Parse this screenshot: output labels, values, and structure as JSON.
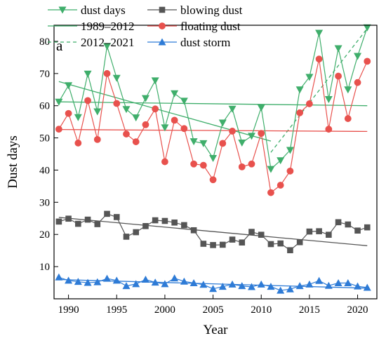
{
  "chart_data": {
    "type": "line",
    "panel_label": "a",
    "xlabel": "Year",
    "ylabel": "Dust days",
    "xlim": [
      1988.5,
      2022.0
    ],
    "ylim": [
      0,
      85
    ],
    "x_ticks": [
      1990,
      1995,
      2000,
      2005,
      2010,
      2015,
      2020
    ],
    "y_ticks": [
      10,
      20,
      30,
      40,
      50,
      60,
      70,
      80
    ],
    "grid": false,
    "legend_position": "top",
    "x": [
      1989,
      1990,
      1991,
      1992,
      1993,
      1994,
      1995,
      1996,
      1997,
      1998,
      1999,
      2000,
      2001,
      2002,
      2003,
      2004,
      2005,
      2006,
      2007,
      2008,
      2009,
      2010,
      2011,
      2012,
      2013,
      2014,
      2015,
      2016,
      2017,
      2018,
      2019,
      2020,
      2021
    ],
    "series": [
      {
        "name": "dust days",
        "color": "#3fae6b",
        "marker": "triangle-down",
        "values": [
          61.2,
          66.3,
          56.4,
          69.9,
          58.2,
          78.5,
          68.6,
          58.9,
          56.3,
          62.3,
          67.8,
          53.2,
          63.8,
          61.5,
          48.9,
          48.3,
          43.7,
          54.7,
          59.0,
          48.5,
          50.6,
          59.4,
          40.3,
          43.0,
          46.2,
          65.0,
          68.9,
          82.6,
          62.0,
          77.8,
          65.0,
          75.4,
          84.3
        ]
      },
      {
        "name": "floating dust",
        "color": "#e8514d",
        "marker": "circle",
        "values": [
          52.7,
          57.6,
          48.4,
          61.6,
          49.5,
          70.0,
          60.7,
          51.2,
          48.8,
          54.1,
          59.0,
          42.6,
          55.5,
          52.9,
          41.9,
          41.5,
          37.0,
          48.3,
          52.1,
          41.0,
          41.9,
          51.4,
          33.0,
          35.3,
          39.7,
          57.8,
          60.6,
          74.5,
          52.7,
          69.2,
          56.0,
          67.2,
          73.8
        ]
      },
      {
        "name": "blowing dust",
        "color": "#555555",
        "marker": "square",
        "values": [
          24.0,
          24.9,
          23.3,
          24.6,
          23.2,
          26.4,
          25.4,
          19.3,
          20.7,
          22.6,
          24.4,
          24.2,
          23.7,
          22.9,
          21.3,
          17.1,
          16.7,
          16.8,
          18.4,
          17.5,
          20.8,
          19.9,
          17.0,
          17.2,
          15.1,
          17.6,
          20.9,
          21.0,
          19.9,
          23.8,
          23.1,
          21.2,
          22.2
        ]
      },
      {
        "name": "dust storm",
        "color": "#2e7bd6",
        "marker": "triangle-up",
        "values": [
          6.7,
          5.7,
          5.3,
          5.0,
          5.2,
          6.3,
          5.7,
          4.0,
          4.6,
          6.0,
          5.1,
          4.6,
          6.4,
          5.4,
          4.9,
          4.4,
          3.1,
          3.8,
          4.5,
          4.0,
          3.7,
          4.5,
          3.8,
          2.6,
          3.0,
          4.0,
          4.5,
          5.6,
          4.1,
          4.9,
          4.9,
          3.9,
          3.5
        ]
      }
    ],
    "trend_lines": [
      {
        "name": "1989–2012",
        "style": "solid",
        "color": "#3fae6b",
        "x": [
          1989,
          2011
        ],
        "y": [
          67.5,
          49.0
        ]
      },
      {
        "name": "2012–2021",
        "style": "dashed",
        "color": "#3fae6b",
        "x": [
          2011,
          2021
        ],
        "y": [
          45.5,
          84.0
        ]
      },
      {
        "name": "",
        "style": "solid",
        "color": "#3fae6b",
        "x": [
          1989,
          2021
        ],
        "y": [
          61.2,
          60.0
        ]
      },
      {
        "name": "",
        "style": "solid",
        "color": "#e8514d",
        "x": [
          1989,
          2021
        ],
        "y": [
          52.6,
          52.0
        ]
      },
      {
        "name": "",
        "style": "solid",
        "color": "#555555",
        "x": [
          1989,
          2021
        ],
        "y": [
          25.3,
          16.5
        ]
      },
      {
        "name": "",
        "style": "solid",
        "color": "#2e7bd6",
        "x": [
          1989,
          2021
        ],
        "y": [
          6.0,
          3.3
        ]
      }
    ],
    "legend": [
      {
        "label": "dust days",
        "kind": "marker-line",
        "color": "#3fae6b",
        "marker": "triangle-down",
        "dashed": false
      },
      {
        "label": "blowing dust",
        "kind": "marker-line",
        "color": "#555555",
        "marker": "square",
        "dashed": false
      },
      {
        "label": "1989–2012",
        "kind": "line",
        "color": "#3fae6b",
        "marker": "",
        "dashed": false
      },
      {
        "label": "floating dust",
        "kind": "marker-line",
        "color": "#e8514d",
        "marker": "circle",
        "dashed": false
      },
      {
        "label": "2012–2021",
        "kind": "line",
        "color": "#3fae6b",
        "marker": "",
        "dashed": true
      },
      {
        "label": "dust storm",
        "kind": "marker-line",
        "color": "#2e7bd6",
        "marker": "triangle-up",
        "dashed": false
      }
    ]
  }
}
